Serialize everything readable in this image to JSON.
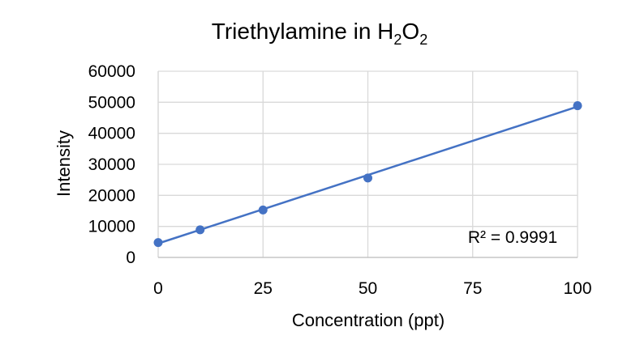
{
  "chart_data": {
    "type": "scatter",
    "title": {
      "main": "Triethylamine in H",
      "sub1": "2",
      "mid": "O",
      "sub2": "2"
    },
    "xlabel": "Concentration (ppt)",
    "ylabel": "Intensity",
    "xlim": [
      0,
      100
    ],
    "ylim": [
      0,
      60000
    ],
    "x_ticks": [
      "0",
      "25",
      "50",
      "75",
      "100"
    ],
    "y_ticks": [
      "0",
      "10000",
      "20000",
      "30000",
      "40000",
      "50000",
      "60000"
    ],
    "grid": true,
    "legend": "none",
    "series": [
      {
        "points": [
          {
            "x": 0,
            "y": 4800
          },
          {
            "x": 10,
            "y": 8900
          },
          {
            "x": 25,
            "y": 15300
          },
          {
            "x": 50,
            "y": 25600
          },
          {
            "x": 100,
            "y": 48900
          }
        ],
        "color": "#4472c4"
      }
    ],
    "trendline": {
      "type": "linear",
      "from": {
        "x": 0,
        "y": 4500
      },
      "to": {
        "x": 100,
        "y": 48600
      },
      "color": "#4472c4"
    },
    "annotation": "R² = 0.9991"
  }
}
